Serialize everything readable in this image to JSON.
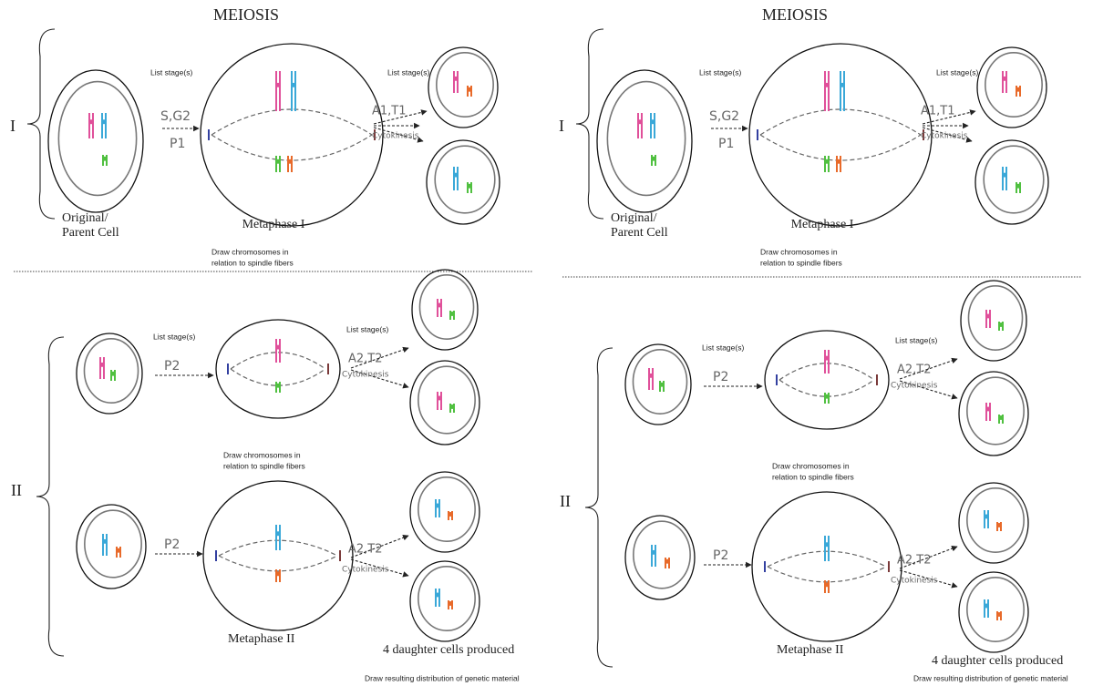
{
  "panels": [
    {
      "title": "MEIOSIS",
      "meiosis_1": {
        "label": "I",
        "list_stage_prompts": [
          "List stage(s)",
          "List stage(s)"
        ],
        "stages_before": [
          "S,G2",
          "P1"
        ],
        "stages_after": [
          "A1,T1",
          "Cytokinesis"
        ],
        "parent_cell_label": [
          "Original/",
          "Parent Cell"
        ],
        "metaphase_label": "Metaphase I",
        "instruction": [
          "Draw chromosomes in",
          "relation to spindle fibers"
        ]
      },
      "meiosis_2": {
        "label": "II",
        "top_row": {
          "list_stage_prompts": [
            "List stage(s)",
            "List stage(s)"
          ],
          "stages_before": [
            "P2"
          ],
          "stages_after": [
            "A2,T2",
            "Cytokinesis"
          ],
          "instruction": [
            "Draw chromosomes in",
            "relation to spindle fibers"
          ]
        },
        "bottom_row": {
          "stages_before": [
            "P2"
          ],
          "stages_after": [
            "A2,T2",
            "Cytokinesis"
          ],
          "metaphase_label": "Metaphase II",
          "result_label": "4 daughter cells produced",
          "instruction": "Draw resulting distribution of genetic material"
        }
      }
    },
    {
      "title": "MEIOSIS",
      "meiosis_1": {
        "label": "I",
        "list_stage_prompts": [
          "List stage(s)",
          "List stage(s)"
        ],
        "stages_before": [
          "S,G2",
          "P1"
        ],
        "stages_after": [
          "A1,T1",
          "Cytokinesis"
        ],
        "parent_cell_label": [
          "Original/",
          "Parent Cell"
        ],
        "metaphase_label": "Metaphase I",
        "instruction": [
          "Draw chromosomes in",
          "relation to spindle fibers"
        ]
      },
      "meiosis_2": {
        "label": "II",
        "top_row": {
          "list_stage_prompts": [
            "List stage(s)",
            "List stage(s)"
          ],
          "stages_before": [
            "P2"
          ],
          "stages_after": [
            "A2,T2",
            "Cytokinesis"
          ],
          "instruction": [
            "Draw chromosomes in",
            "relation to spindle fibers"
          ]
        },
        "bottom_row": {
          "stages_before": [
            "P2"
          ],
          "stages_after": [
            "A2,T2",
            "Cytokinesis"
          ],
          "metaphase_label": "Metaphase II",
          "result_label": "4 daughter cells produced",
          "instruction": "Draw resulting distribution of genetic material"
        }
      }
    }
  ]
}
